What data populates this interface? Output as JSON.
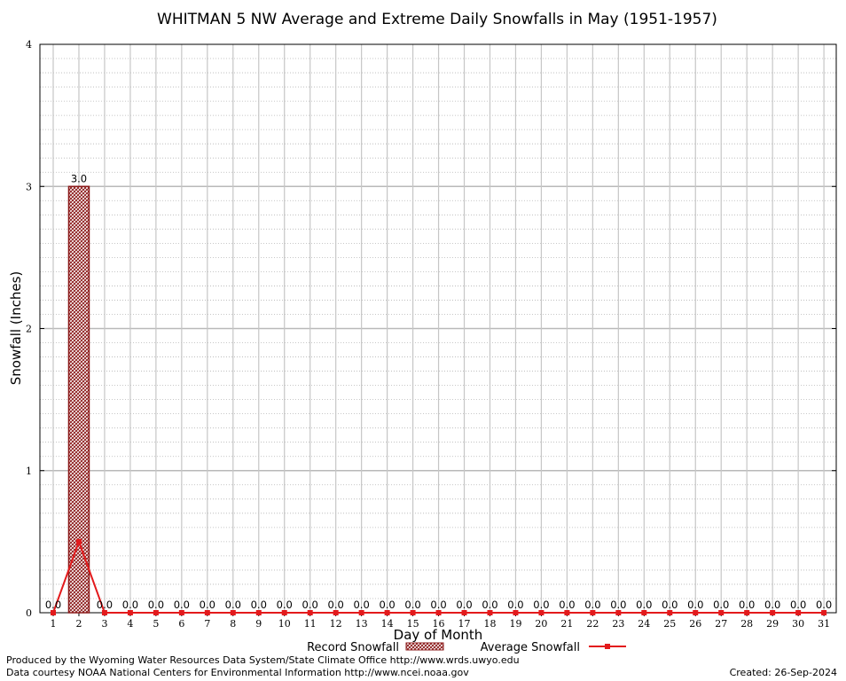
{
  "chart_data": {
    "type": "bar",
    "title": "WHITMAN 5 NW Average and Extreme Daily Snowfalls in May (1951-1957)",
    "xlabel": "Day of Month",
    "ylabel": "Snowfall (Inches)",
    "ylim": [
      0,
      4
    ],
    "yticks": [
      "0",
      "1",
      "2",
      "3",
      "4"
    ],
    "categories": [
      "1",
      "2",
      "3",
      "4",
      "5",
      "6",
      "7",
      "8",
      "9",
      "10",
      "11",
      "12",
      "13",
      "14",
      "15",
      "16",
      "17",
      "18",
      "19",
      "20",
      "21",
      "22",
      "23",
      "24",
      "25",
      "26",
      "27",
      "28",
      "29",
      "30",
      "31"
    ],
    "series": [
      {
        "name": "Record Snowfall",
        "kind": "bar",
        "color": "#8b1a1a",
        "values": [
          0,
          3,
          0,
          0,
          0,
          0,
          0,
          0,
          0,
          0,
          0,
          0,
          0,
          0,
          0,
          0,
          0,
          0,
          0,
          0,
          0,
          0,
          0,
          0,
          0,
          0,
          0,
          0,
          0,
          0,
          0
        ],
        "labels": [
          "0.0",
          "3.0",
          "0.0",
          "0.0",
          "0.0",
          "0.0",
          "0.0",
          "0.0",
          "0.0",
          "0.0",
          "0.0",
          "0.0",
          "0.0",
          "0.0",
          "0.0",
          "0.0",
          "0.0",
          "0.0",
          "0.0",
          "0.0",
          "0.0",
          "0.0",
          "0.0",
          "0.0",
          "0.0",
          "0.0",
          "0.0",
          "0.0",
          "0.0",
          "0.0",
          "0.0"
        ]
      },
      {
        "name": "Average Snowfall",
        "kind": "line",
        "color": "#e31a1c",
        "values": [
          0,
          0.5,
          0,
          0,
          0,
          0,
          0,
          0,
          0,
          0,
          0,
          0,
          0,
          0,
          0,
          0,
          0,
          0,
          0,
          0,
          0,
          0,
          0,
          0,
          0,
          0,
          0,
          0,
          0,
          0,
          0
        ]
      }
    ],
    "grid": true,
    "legend_placement": "bottom"
  },
  "footer": {
    "produced_by": "Produced by the Wyoming Water Resources Data System/State Climate Office http://www.wrds.uwyo.edu",
    "courtesy": "Data courtesy NOAA National Centers for Environmental Information http://www.ncei.noaa.gov",
    "created": "Created:  26-Sep-2024"
  }
}
